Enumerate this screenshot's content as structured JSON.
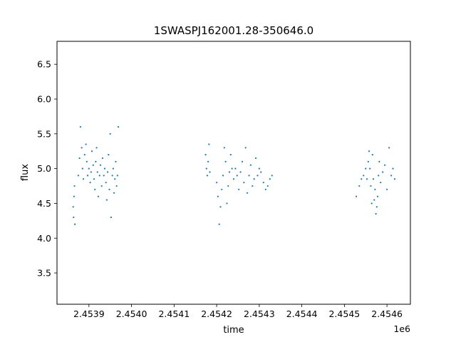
{
  "chart_data": {
    "type": "scatter",
    "title": "1SWASPJ162001.28-350646.0",
    "xlabel": "time",
    "ylabel": "flux",
    "x_offset_label": "1e6",
    "xlim": [
      2453825,
      2454655
    ],
    "ylim": [
      3.05,
      6.83
    ],
    "x_ticks": [
      2453900,
      2454000,
      2454100,
      2454200,
      2454300,
      2454400,
      2454500,
      2454600
    ],
    "x_tick_labels": [
      "2.4539",
      "2.4540",
      "2.4541",
      "2.4542",
      "2.4543",
      "2.4544",
      "2.4545",
      "2.4546"
    ],
    "y_ticks": [
      3.5,
      4.0,
      4.5,
      5.0,
      5.5,
      6.0,
      6.5
    ],
    "y_tick_labels": [
      "3.5",
      "4.0",
      "4.5",
      "5.0",
      "5.5",
      "6.0",
      "6.5"
    ],
    "grid": false,
    "marker_color": "#1f77b4",
    "series": [
      {
        "x": [
          2453863,
          2453864,
          2453865,
          2453866,
          2453867,
          2453875,
          2453878,
          2453880,
          2453883,
          2453885,
          2453887,
          2453890,
          2453893,
          2453895,
          2453897,
          2453900,
          2453903,
          2453905,
          2453907,
          2453910,
          2453912,
          2453914,
          2453916,
          2453918,
          2453920,
          2453922,
          2453925,
          2453927,
          2453930,
          2453932,
          2453935,
          2453937,
          2453940,
          2453942,
          2453944,
          2453946,
          2453948,
          2453950,
          2453952,
          2453955,
          2453957,
          2453959,
          2453961,
          2453963,
          2453965,
          2453967,
          2453969,
          2454174,
          2454176,
          2454178,
          2454180,
          2454182,
          2454184,
          2454200,
          2454203,
          2454206,
          2454209,
          2454212,
          2454215,
          2454218,
          2454221,
          2454224,
          2454227,
          2454230,
          2454233,
          2454236,
          2454240,
          2454244,
          2454248,
          2454252,
          2454256,
          2454260,
          2454264,
          2454268,
          2454272,
          2454276,
          2454280,
          2454284,
          2454288,
          2454292,
          2454296,
          2454300,
          2454304,
          2454310,
          2454315,
          2454320,
          2454325,
          2454330,
          2454528,
          2454535,
          2454540,
          2454545,
          2454550,
          2454553,
          2454556,
          2454558,
          2454560,
          2454562,
          2454564,
          2454566,
          2454568,
          2454570,
          2454572,
          2454574,
          2454576,
          2454578,
          2454580,
          2454582,
          2454585,
          2454590,
          2454595,
          2454600,
          2454605,
          2454610,
          2454614,
          2454618
        ],
        "y": [
          4.45,
          4.3,
          4.6,
          4.75,
          4.2,
          4.9,
          5.15,
          5.6,
          5.3,
          5.0,
          4.85,
          5.2,
          5.35,
          5.1,
          4.9,
          5.0,
          4.8,
          4.95,
          5.25,
          5.05,
          4.85,
          4.7,
          5.1,
          5.3,
          4.95,
          4.6,
          4.9,
          5.05,
          4.75,
          5.15,
          4.9,
          5.0,
          4.8,
          4.55,
          4.95,
          5.2,
          4.7,
          5.5,
          4.3,
          4.9,
          5.0,
          4.65,
          4.85,
          5.1,
          4.75,
          4.9,
          5.6,
          5.2,
          5.0,
          4.9,
          5.1,
          5.35,
          4.95,
          4.8,
          4.6,
          4.2,
          4.45,
          4.7,
          4.9,
          5.3,
          5.1,
          4.5,
          4.75,
          4.95,
          5.2,
          5.0,
          4.85,
          5.0,
          4.9,
          4.7,
          4.95,
          5.1,
          4.8,
          5.3,
          4.65,
          4.9,
          5.05,
          4.75,
          4.85,
          5.15,
          4.9,
          5.0,
          4.95,
          4.8,
          4.7,
          4.75,
          4.85,
          4.9,
          4.6,
          4.75,
          4.85,
          4.9,
          5.0,
          4.85,
          5.1,
          5.25,
          5.0,
          4.75,
          4.5,
          5.2,
          4.85,
          4.55,
          4.7,
          4.35,
          4.45,
          4.6,
          4.9,
          5.1,
          4.8,
          4.95,
          5.05,
          4.7,
          5.3,
          4.9,
          5.0,
          4.85
        ]
      }
    ]
  }
}
